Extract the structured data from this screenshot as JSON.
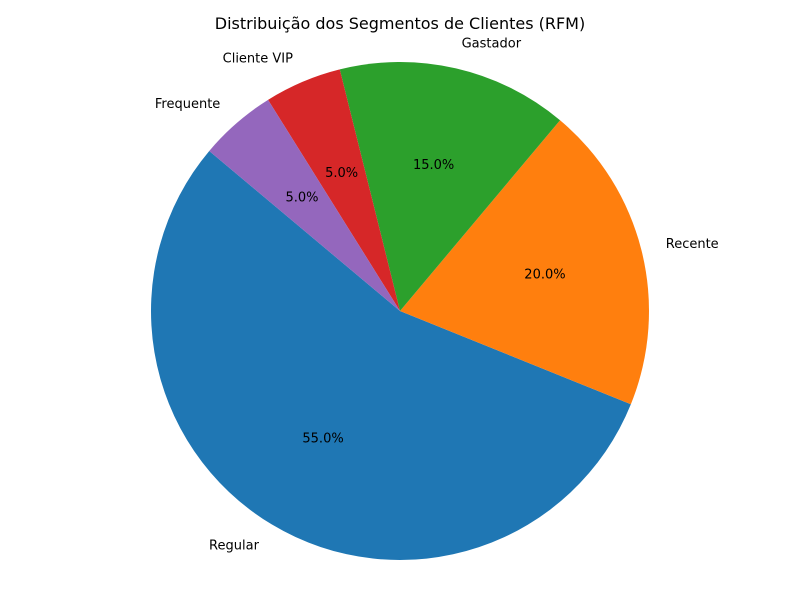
{
  "chart_data": {
    "type": "pie",
    "title": "Distribuição dos Segmentos de Clientes (RFM)",
    "categories": [
      "Regular",
      "Recente",
      "Gastador",
      "Cliente VIP",
      "Frequente"
    ],
    "values": [
      55.0,
      20.0,
      15.0,
      5.0,
      5.0
    ],
    "percent_labels": [
      "55.0%",
      "20.0%",
      "15.0%",
      "5.0%",
      "5.0%"
    ],
    "colors": [
      "#1f77b4",
      "#ff7f0e",
      "#2ca02c",
      "#d62728",
      "#9467bd"
    ],
    "start_angle_deg": 140,
    "direction": "counterclockwise"
  }
}
